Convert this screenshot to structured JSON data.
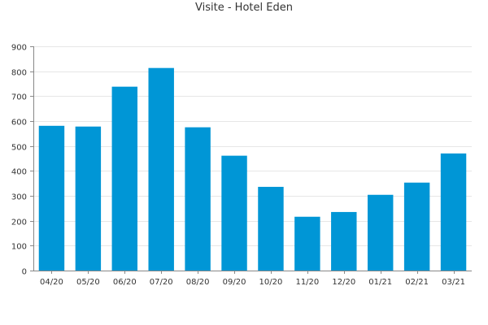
{
  "chart_data": {
    "type": "bar",
    "title": "Visite - Hotel Eden",
    "xlabel": "",
    "ylabel": "",
    "categories": [
      "04/20",
      "05/20",
      "06/20",
      "07/20",
      "08/20",
      "09/20",
      "10/20",
      "11/20",
      "12/20",
      "01/21",
      "02/21",
      "03/21"
    ],
    "values": [
      581,
      578,
      738,
      813,
      575,
      461,
      336,
      216,
      235,
      304,
      353,
      470
    ],
    "ylim": [
      0,
      900
    ],
    "yticks": [
      0,
      100,
      200,
      300,
      400,
      500,
      600,
      700,
      800,
      900
    ],
    "grid": true,
    "legend": "none",
    "colors": {
      "bar": "#0096d6",
      "grid": "#e6e6e6",
      "axis": "#888888"
    }
  }
}
